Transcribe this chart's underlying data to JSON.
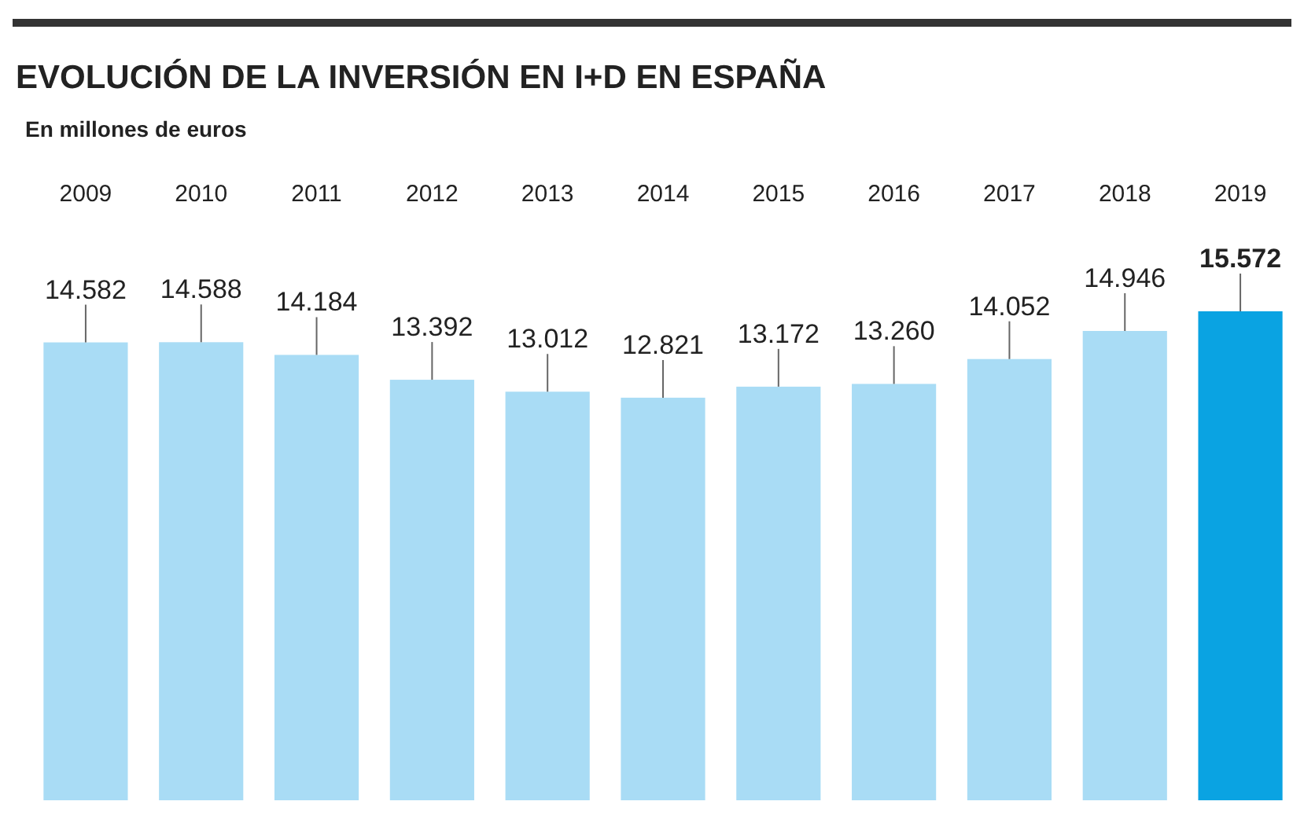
{
  "chart_data": {
    "type": "bar",
    "title": "EVOLUCIÓN DE LA INVERSIÓN EN I+D EN ESPAÑA",
    "subtitle": "En millones de euros",
    "categories": [
      "2009",
      "2010",
      "2011",
      "2012",
      "2013",
      "2014",
      "2015",
      "2016",
      "2017",
      "2018",
      "2019"
    ],
    "values": [
      14582,
      14588,
      14184,
      13392,
      13012,
      12821,
      13172,
      13260,
      14052,
      14946,
      15572
    ],
    "value_labels": [
      "14.582",
      "14.588",
      "14.184",
      "13.392",
      "13.012",
      "12.821",
      "13.172",
      "13.260",
      "14.052",
      "14.946",
      "15.572"
    ],
    "colors": [
      "#a9dcf5",
      "#a9dcf5",
      "#a9dcf5",
      "#a9dcf5",
      "#a9dcf5",
      "#a9dcf5",
      "#a9dcf5",
      "#a9dcf5",
      "#a9dcf5",
      "#a9dcf5",
      "#0aa3e2"
    ]
  }
}
